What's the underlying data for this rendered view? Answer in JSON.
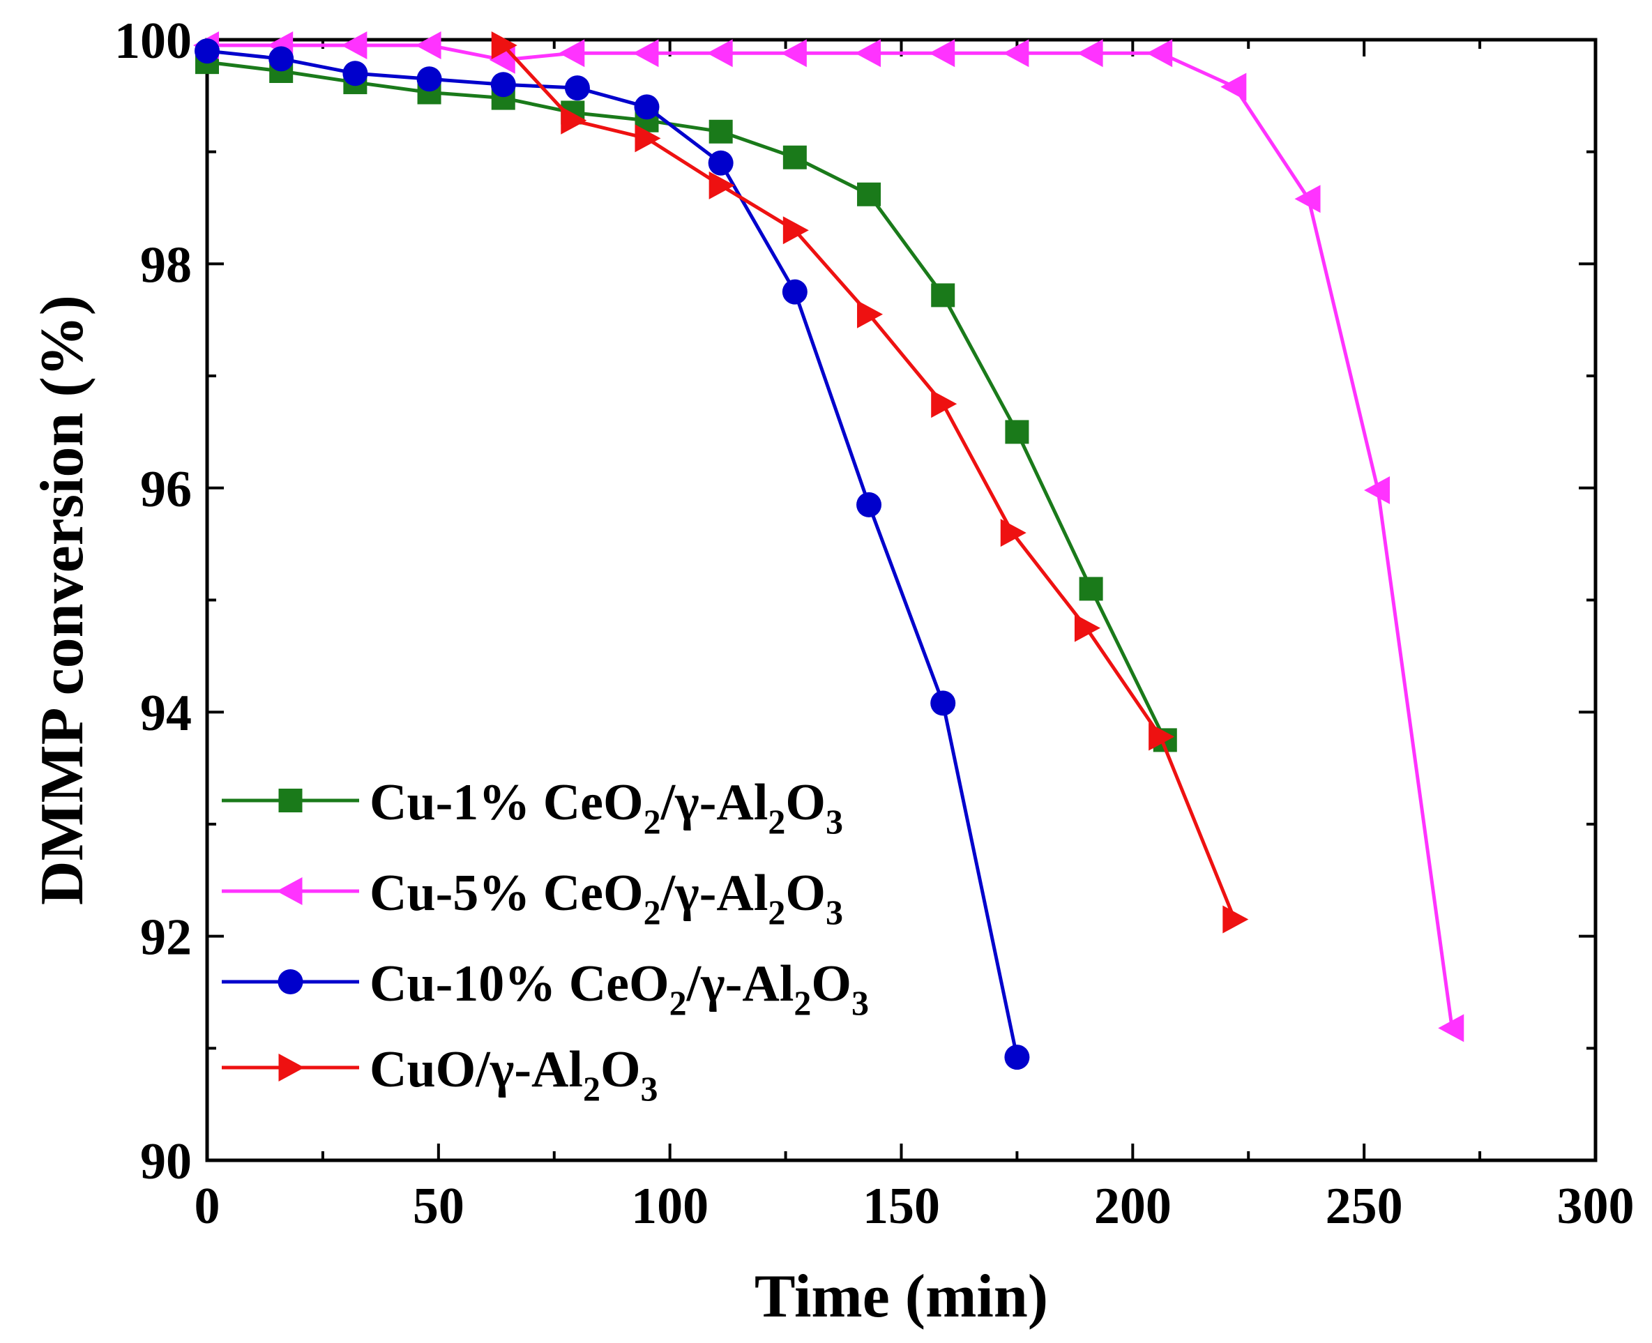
{
  "chart_data": {
    "type": "line",
    "title": "",
    "xlabel": "Time (min)",
    "ylabel": "DMMP conversion (%)",
    "xlim": [
      0,
      300
    ],
    "ylim": [
      90,
      100
    ],
    "xticks": [
      0,
      50,
      100,
      150,
      200,
      250,
      300
    ],
    "yticks": [
      90,
      92,
      94,
      96,
      98,
      100
    ],
    "xtick_labels": [
      "0",
      "50",
      "100",
      "150",
      "200",
      "250",
      "300"
    ],
    "ytick_labels": [
      "90",
      "92",
      "94",
      "96",
      "98",
      "100"
    ],
    "grid": false,
    "legend_position": "bottom-left",
    "series": [
      {
        "name": "Cu-1% CeO2/γ-Al2O3",
        "legend_parts": [
          "Cu-1% CeO",
          "2",
          "/γ-Al",
          "2",
          "O",
          "3"
        ],
        "color": "#1a7a1a",
        "marker": "square",
        "x": [
          0,
          16,
          32,
          48,
          64,
          79,
          95,
          111,
          127,
          143,
          159,
          175,
          191,
          207
        ],
        "y": [
          99.8,
          99.72,
          99.62,
          99.53,
          99.48,
          99.35,
          99.28,
          99.18,
          98.95,
          98.62,
          97.72,
          96.5,
          95.1,
          93.75
        ]
      },
      {
        "name": "Cu-5% CeO2/γ-Al2O3",
        "legend_parts": [
          "Cu-5% CeO",
          "2",
          "/γ-Al",
          "2",
          "O",
          "3"
        ],
        "color": "#ff33ff",
        "marker": "triangle-left",
        "x": [
          0,
          16,
          32,
          48,
          64,
          79,
          95,
          111,
          127,
          143,
          159,
          175,
          191,
          206,
          222,
          238,
          253,
          269
        ],
        "y": [
          99.95,
          99.95,
          99.95,
          99.95,
          99.82,
          99.88,
          99.88,
          99.88,
          99.88,
          99.88,
          99.88,
          99.88,
          99.88,
          99.88,
          99.58,
          98.58,
          95.98,
          91.18
        ]
      },
      {
        "name": "Cu-10% CeO2/γ-Al2O3",
        "legend_parts": [
          "Cu-10% CeO",
          "2",
          "/γ-Al",
          "2",
          "O",
          "3"
        ],
        "color": "#0000cc",
        "marker": "circle",
        "x": [
          0,
          16,
          32,
          48,
          64,
          80,
          95,
          111,
          127,
          143,
          159,
          175
        ],
        "y": [
          99.9,
          99.83,
          99.7,
          99.65,
          99.6,
          99.57,
          99.4,
          98.9,
          97.75,
          95.85,
          94.08,
          90.92
        ]
      },
      {
        "name": "CuO/γ-Al2O3",
        "legend_parts": [
          "CuO/γ-Al",
          "2",
          "O",
          "3",
          "",
          ""
        ],
        "color": "#ee1111",
        "marker": "triangle-right",
        "x": [
          64,
          79,
          95,
          111,
          127,
          143,
          159,
          174,
          190,
          206,
          222
        ],
        "y": [
          99.95,
          99.28,
          99.12,
          98.7,
          98.3,
          97.55,
          96.75,
          95.6,
          94.75,
          93.78,
          92.15
        ]
      }
    ]
  }
}
